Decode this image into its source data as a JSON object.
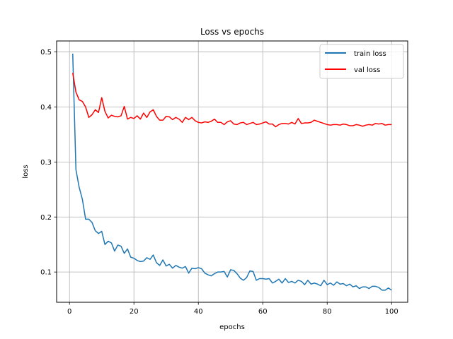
{
  "chart_data": {
    "type": "line",
    "title": "Loss vs epochs",
    "xlabel": "epochs",
    "ylabel": "loss",
    "xlim": [
      -4,
      105
    ],
    "ylim": [
      0.045,
      0.52
    ],
    "xticks": [
      0,
      20,
      40,
      60,
      80,
      100
    ],
    "yticks": [
      0.1,
      0.2,
      0.3,
      0.4,
      0.5
    ],
    "xtick_labels": [
      "0",
      "20",
      "40",
      "60",
      "80",
      "100"
    ],
    "ytick_labels": [
      "0.1",
      "0.2",
      "0.3",
      "0.4",
      "0.5"
    ],
    "grid": true,
    "legend_position": "upper right",
    "series": [
      {
        "name": "train loss",
        "color": "#1f77b4",
        "x": [
          1,
          2,
          3,
          4,
          5,
          6,
          7,
          8,
          9,
          10,
          11,
          12,
          13,
          14,
          15,
          16,
          17,
          18,
          19,
          20,
          21,
          22,
          23,
          24,
          25,
          26,
          27,
          28,
          29,
          30,
          31,
          32,
          33,
          34,
          35,
          36,
          37,
          38,
          39,
          40,
          41,
          42,
          43,
          44,
          45,
          46,
          47,
          48,
          49,
          50,
          51,
          52,
          53,
          54,
          55,
          56,
          57,
          58,
          59,
          60,
          61,
          62,
          63,
          64,
          65,
          66,
          67,
          68,
          69,
          70,
          71,
          72,
          73,
          74,
          75,
          76,
          77,
          78,
          79,
          80,
          81,
          82,
          83,
          84,
          85,
          86,
          87,
          88,
          89,
          90,
          91,
          92,
          93,
          94,
          95,
          96,
          97,
          98,
          99,
          100
        ],
        "values": [
          0.497,
          0.286,
          0.254,
          0.232,
          0.196,
          0.196,
          0.19,
          0.175,
          0.17,
          0.174,
          0.15,
          0.156,
          0.153,
          0.138,
          0.149,
          0.147,
          0.134,
          0.142,
          0.127,
          0.125,
          0.121,
          0.119,
          0.12,
          0.126,
          0.123,
          0.131,
          0.117,
          0.112,
          0.122,
          0.111,
          0.114,
          0.107,
          0.112,
          0.109,
          0.107,
          0.11,
          0.098,
          0.107,
          0.106,
          0.108,
          0.106,
          0.098,
          0.095,
          0.093,
          0.097,
          0.1,
          0.1,
          0.101,
          0.091,
          0.104,
          0.103,
          0.097,
          0.089,
          0.085,
          0.09,
          0.102,
          0.101,
          0.085,
          0.088,
          0.088,
          0.087,
          0.088,
          0.08,
          0.083,
          0.087,
          0.08,
          0.088,
          0.081,
          0.083,
          0.08,
          0.085,
          0.083,
          0.077,
          0.085,
          0.078,
          0.08,
          0.078,
          0.075,
          0.085,
          0.077,
          0.08,
          0.076,
          0.082,
          0.078,
          0.079,
          0.075,
          0.078,
          0.073,
          0.075,
          0.07,
          0.073,
          0.073,
          0.07,
          0.074,
          0.074,
          0.072,
          0.067,
          0.067,
          0.071,
          0.067
        ]
      },
      {
        "name": "val loss",
        "color": "#ff0000",
        "x": [
          1,
          2,
          3,
          4,
          5,
          6,
          7,
          8,
          9,
          10,
          11,
          12,
          13,
          14,
          15,
          16,
          17,
          18,
          19,
          20,
          21,
          22,
          23,
          24,
          25,
          26,
          27,
          28,
          29,
          30,
          31,
          32,
          33,
          34,
          35,
          36,
          37,
          38,
          39,
          40,
          41,
          42,
          43,
          44,
          45,
          46,
          47,
          48,
          49,
          50,
          51,
          52,
          53,
          54,
          55,
          56,
          57,
          58,
          59,
          60,
          61,
          62,
          63,
          64,
          65,
          66,
          67,
          68,
          69,
          70,
          71,
          72,
          73,
          74,
          75,
          76,
          77,
          78,
          79,
          80,
          81,
          82,
          83,
          84,
          85,
          86,
          87,
          88,
          89,
          90,
          91,
          92,
          93,
          94,
          95,
          96,
          97,
          98,
          99,
          100
        ],
        "values": [
          0.462,
          0.427,
          0.413,
          0.41,
          0.4,
          0.381,
          0.386,
          0.395,
          0.39,
          0.417,
          0.392,
          0.38,
          0.385,
          0.383,
          0.382,
          0.384,
          0.401,
          0.378,
          0.381,
          0.379,
          0.384,
          0.378,
          0.389,
          0.381,
          0.391,
          0.395,
          0.383,
          0.376,
          0.376,
          0.383,
          0.382,
          0.377,
          0.381,
          0.378,
          0.372,
          0.381,
          0.377,
          0.381,
          0.375,
          0.372,
          0.371,
          0.373,
          0.372,
          0.374,
          0.378,
          0.372,
          0.372,
          0.368,
          0.373,
          0.375,
          0.369,
          0.368,
          0.371,
          0.372,
          0.368,
          0.37,
          0.372,
          0.368,
          0.369,
          0.371,
          0.373,
          0.369,
          0.369,
          0.364,
          0.368,
          0.37,
          0.37,
          0.369,
          0.372,
          0.369,
          0.379,
          0.37,
          0.371,
          0.371,
          0.372,
          0.376,
          0.374,
          0.372,
          0.37,
          0.368,
          0.367,
          0.368,
          0.368,
          0.367,
          0.369,
          0.368,
          0.366,
          0.366,
          0.368,
          0.367,
          0.365,
          0.367,
          0.368,
          0.367,
          0.37,
          0.369,
          0.37,
          0.367,
          0.368,
          0.368
        ]
      }
    ]
  }
}
